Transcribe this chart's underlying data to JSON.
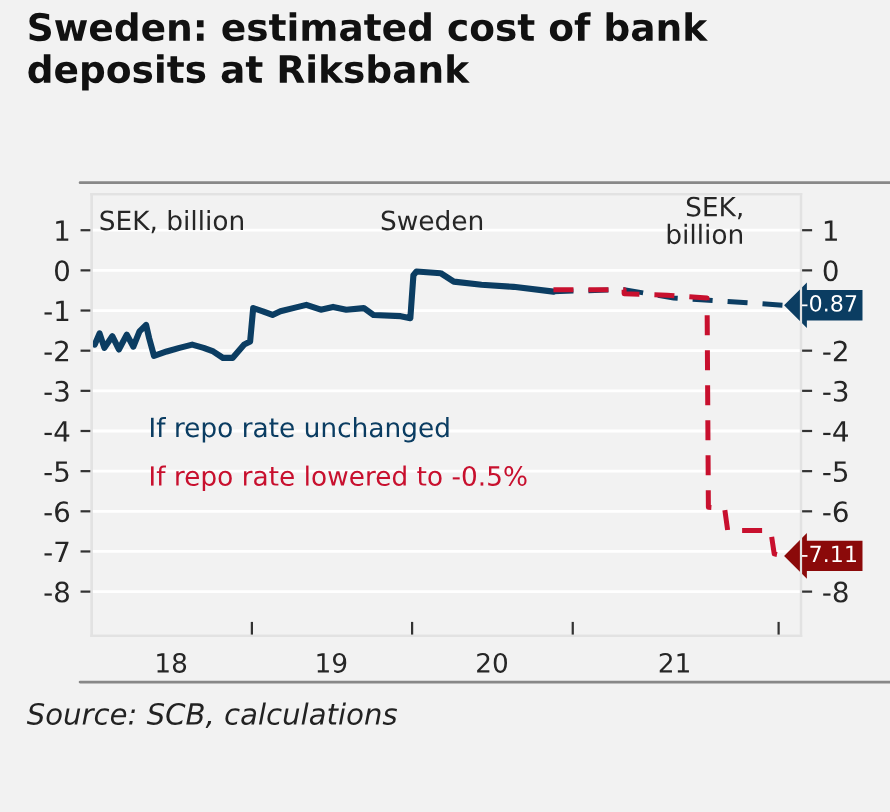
{
  "chart_data": {
    "type": "line",
    "title": "Sweden: estimated cost of bank deposits at Riksbank",
    "ylabel": "SEK, billion",
    "y2label": "SEK,\nbillion",
    "annotations": [
      "Sweden",
      "Source: SCB, calculations"
    ],
    "xlim": [
      "2018-01-01",
      "2022-06-05"
    ],
    "ylim": [
      -9.1,
      1.9
    ],
    "xticks": [
      {
        "value": "2019-01-01",
        "label": null
      },
      {
        "value": "2020-01-01",
        "label": null
      },
      {
        "value": "2021-01-01",
        "label": null
      },
      {
        "value": "2022-04-15",
        "label": null
      },
      {
        "value": "2018-07-01",
        "label": "18"
      },
      {
        "value": "2019-07-01",
        "label": "19"
      },
      {
        "value": "2020-07-01",
        "label": "20"
      },
      {
        "value": "2021-08-21",
        "label": "21"
      }
    ],
    "yticks": [
      1,
      0,
      -1,
      -2,
      -3,
      -4,
      -5,
      -6,
      -7,
      -8
    ],
    "y2lim": [
      -9.1,
      1.9
    ],
    "y2ticks": [
      1,
      0,
      -2,
      -3,
      -4,
      -5,
      -6,
      -8
    ],
    "grid": "y",
    "legend": false,
    "series": [
      {
        "name": "If repo rate unchanged",
        "color": "#0b3d62",
        "line_style": "solid",
        "x": [
          "2018-01-08",
          "2018-01-19",
          "2018-01-30",
          "2018-02-17",
          "2018-03-04",
          "2018-03-22",
          "2018-04-06",
          "2018-04-20",
          "2018-05-05",
          "2018-05-12",
          "2018-05-23",
          "2018-06-21",
          "2018-07-20",
          "2018-08-18",
          "2018-09-13",
          "2018-10-05",
          "2018-10-27",
          "2018-11-18",
          "2018-12-14",
          "2018-12-28",
          "2019-01-04",
          "2019-01-26",
          "2019-02-17",
          "2019-03-07",
          "2019-04-05",
          "2019-05-05",
          "2019-06-07",
          "2019-07-05",
          "2019-08-04",
          "2019-09-13",
          "2019-10-05",
          "2019-12-06",
          "2019-12-28",
          "2020-01-04",
          "2020-01-11",
          "2020-03-06",
          "2020-04-05",
          "2020-06-07",
          "2020-08-19",
          "2020-11-18"
        ],
        "values": [
          -1.85,
          -1.57,
          -1.93,
          -1.64,
          -1.97,
          -1.6,
          -1.9,
          -1.52,
          -1.36,
          -1.69,
          -2.13,
          -2.02,
          -1.93,
          -1.85,
          -1.93,
          -2.02,
          -2.18,
          -2.18,
          -1.85,
          -1.77,
          -0.94,
          -1.02,
          -1.11,
          -1.02,
          -0.94,
          -0.86,
          -0.98,
          -0.91,
          -0.98,
          -0.94,
          -1.11,
          -1.14,
          -1.19,
          -0.12,
          -0.03,
          -0.07,
          -0.28,
          -0.36,
          -0.41,
          -0.53
        ]
      },
      {
        "color": "#0b3d62",
        "line_style": "dashed",
        "x": [
          "2020-11-18",
          "2021-04-28",
          "2021-08-19",
          "2021-10-20",
          "2022-04-27"
        ],
        "values": [
          -0.53,
          -0.48,
          -0.69,
          -0.73,
          -0.87
        ],
        "value_labels": [
          null,
          null,
          null,
          null,
          "-0.87"
        ]
      },
      {
        "name": "If repo rate lowered to -0.5%",
        "color": "#c8102e",
        "line_style": "dashed",
        "x": [
          "2020-11-18",
          "2021-04-28",
          "2021-04-28",
          "2021-08-04",
          "2021-11-03",
          "2021-11-06",
          "2021-12-13",
          "2021-12-20",
          "2022-03-28",
          "2022-04-05",
          "2022-04-27"
        ],
        "values": [
          -0.48,
          -0.48,
          -0.58,
          -0.62,
          -0.69,
          -5.9,
          -5.93,
          -6.48,
          -6.48,
          -7.06,
          -7.11
        ],
        "value_labels": [
          null,
          null,
          null,
          null,
          null,
          null,
          null,
          null,
          null,
          null,
          "-7.11"
        ]
      }
    ]
  }
}
